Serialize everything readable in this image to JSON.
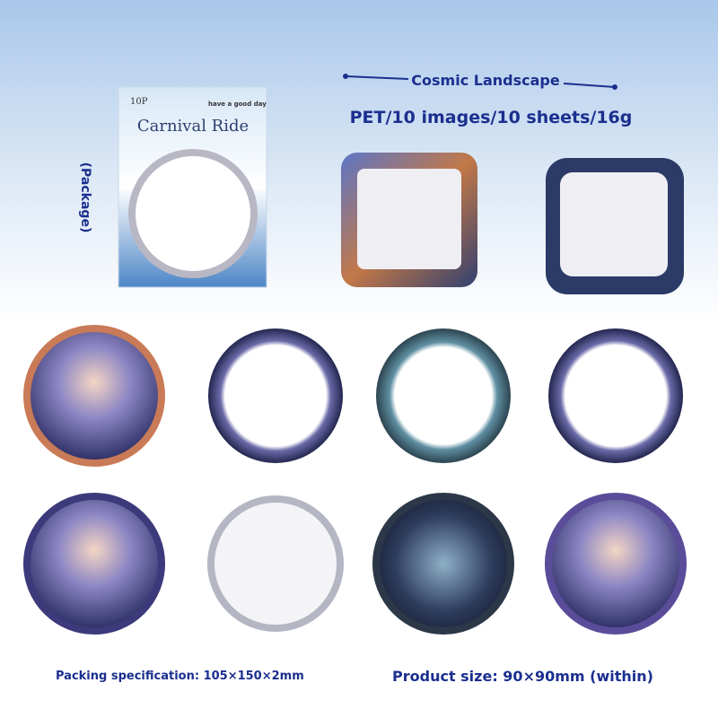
{
  "package": {
    "side_label": "(Package)",
    "count": "10P",
    "name": "Carnival Ride",
    "tagline": "have a good day"
  },
  "header": {
    "title": "Cosmic Landscape",
    "spec": "PET/10 images/10 sheets/16g"
  },
  "footer": {
    "packing": "Packing specification: 105×150×2mm",
    "size": "Product size: 90×90mm (within)"
  }
}
